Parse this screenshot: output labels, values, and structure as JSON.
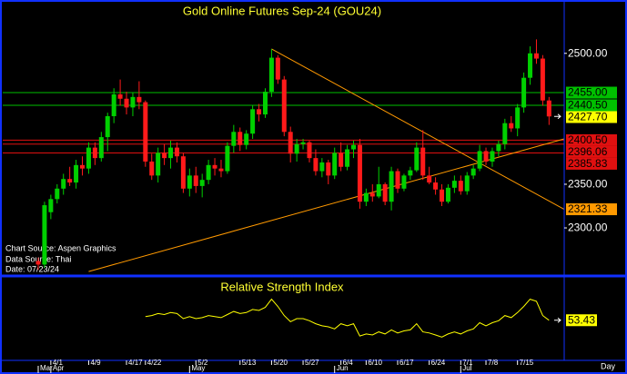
{
  "chart_data": {
    "type": "candlestick",
    "title": "Gold Online Futures Sep-24 (GOU24)",
    "sources": [
      "Chart Source: Aspen Graphics",
      "Data Source: Thai",
      "Date: 07/23/24"
    ],
    "x_label": "Day",
    "up_color": "#00d000",
    "down_color": "#ff1a1a",
    "categories": [
      null,
      null,
      "4/1",
      null,
      null,
      null,
      null,
      null,
      "4/9",
      null,
      null,
      null,
      null,
      null,
      "4/17",
      null,
      null,
      "4/22",
      null,
      null,
      null,
      null,
      null,
      null,
      null,
      "5/2",
      null,
      null,
      null,
      null,
      null,
      null,
      "5/13",
      null,
      null,
      null,
      null,
      "5/20",
      null,
      null,
      null,
      null,
      "5/27",
      null,
      null,
      null,
      null,
      null,
      "6/4",
      null,
      null,
      null,
      "6/10",
      null,
      null,
      null,
      null,
      "6/17",
      null,
      null,
      null,
      null,
      "6/24",
      null,
      null,
      null,
      null,
      "7/1",
      null,
      null,
      null,
      "7/8",
      null,
      null,
      null,
      null,
      "7/15",
      null,
      null,
      null,
      null,
      null
    ],
    "months": [
      "Mar",
      null,
      "Apr",
      null,
      null,
      null,
      null,
      null,
      null,
      null,
      null,
      null,
      null,
      null,
      null,
      null,
      null,
      null,
      null,
      null,
      null,
      null,
      null,
      null,
      "May",
      null,
      null,
      null,
      null,
      null,
      null,
      null,
      null,
      null,
      null,
      null,
      null,
      null,
      null,
      null,
      null,
      null,
      null,
      null,
      null,
      null,
      null,
      "Jun",
      null,
      null,
      null,
      null,
      null,
      null,
      null,
      null,
      null,
      null,
      null,
      null,
      null,
      null,
      null,
      null,
      null,
      null,
      null,
      "Jul",
      null,
      null,
      null,
      null,
      null,
      null,
      null,
      null,
      null,
      null,
      null,
      null,
      null,
      null
    ],
    "open": [
      2262,
      2258,
      2318,
      2333,
      2345,
      2356,
      2352,
      2372,
      2368,
      2392,
      2380,
      2404,
      2428,
      2453,
      2448,
      2438,
      2450,
      2444,
      2376,
      2360,
      2386,
      2380,
      2392,
      2382,
      2345,
      2360,
      2348,
      2355,
      2372,
      2368,
      2365,
      2394,
      2410,
      2395,
      2408,
      2436,
      2430,
      2456,
      2495,
      2470,
      2410,
      2385,
      2396,
      2398,
      2380,
      2365,
      2375,
      2360,
      2386,
      2370,
      2390,
      2395,
      2330,
      2340,
      2336,
      2350,
      2330,
      2365,
      2345,
      2360,
      2366,
      2392,
      2360,
      2352,
      2344,
      2330,
      2346,
      2354,
      2342,
      2360,
      2368,
      2388,
      2376,
      2388,
      2396,
      2420,
      2414,
      2438,
      2472,
      2500,
      2494,
      2446
    ],
    "high": [
      2266,
      2330,
      2338,
      2350,
      2362,
      2370,
      2378,
      2382,
      2398,
      2398,
      2410,
      2432,
      2460,
      2470,
      2456,
      2455,
      2468,
      2446,
      2385,
      2392,
      2396,
      2400,
      2398,
      2386,
      2368,
      2370,
      2362,
      2378,
      2380,
      2378,
      2398,
      2418,
      2415,
      2412,
      2440,
      2442,
      2460,
      2505,
      2498,
      2474,
      2416,
      2402,
      2402,
      2400,
      2390,
      2380,
      2378,
      2392,
      2398,
      2395,
      2400,
      2402,
      2345,
      2350,
      2370,
      2352,
      2370,
      2368,
      2362,
      2370,
      2398,
      2412,
      2370,
      2358,
      2350,
      2350,
      2360,
      2360,
      2364,
      2372,
      2395,
      2392,
      2392,
      2400,
      2425,
      2428,
      2442,
      2478,
      2508,
      2516,
      2498,
      2450
    ],
    "low": [
      2252,
      2254,
      2310,
      2328,
      2338,
      2348,
      2345,
      2360,
      2362,
      2372,
      2376,
      2388,
      2420,
      2440,
      2430,
      2428,
      2436,
      2370,
      2355,
      2352,
      2372,
      2368,
      2375,
      2340,
      2336,
      2340,
      2335,
      2350,
      2360,
      2358,
      2362,
      2386,
      2388,
      2390,
      2402,
      2422,
      2426,
      2450,
      2465,
      2405,
      2375,
      2376,
      2390,
      2375,
      2360,
      2358,
      2350,
      2356,
      2365,
      2366,
      2380,
      2322,
      2325,
      2330,
      2334,
      2326,
      2320,
      2340,
      2342,
      2355,
      2364,
      2355,
      2350,
      2338,
      2325,
      2328,
      2340,
      2338,
      2338,
      2356,
      2365,
      2372,
      2370,
      2382,
      2390,
      2410,
      2405,
      2432,
      2464,
      2488,
      2440,
      2418
    ],
    "close": [
      2258,
      2326,
      2333,
      2345,
      2356,
      2352,
      2372,
      2368,
      2392,
      2380,
      2404,
      2428,
      2453,
      2448,
      2438,
      2450,
      2444,
      2376,
      2360,
      2386,
      2380,
      2392,
      2382,
      2345,
      2360,
      2348,
      2355,
      2372,
      2368,
      2365,
      2394,
      2410,
      2395,
      2408,
      2436,
      2430,
      2456,
      2495,
      2470,
      2410,
      2385,
      2396,
      2398,
      2380,
      2365,
      2375,
      2360,
      2386,
      2370,
      2390,
      2395,
      2330,
      2340,
      2336,
      2350,
      2330,
      2365,
      2345,
      2360,
      2366,
      2392,
      2360,
      2352,
      2344,
      2330,
      2346,
      2354,
      2342,
      2360,
      2368,
      2388,
      2376,
      2388,
      2396,
      2420,
      2414,
      2438,
      2472,
      2500,
      2494,
      2446,
      2427.7
    ],
    "ylim": [
      2247,
      2558
    ],
    "yticks": [
      {
        "value": 2500,
        "label": "2500.00"
      },
      {
        "value": 2350,
        "label": "2350.00"
      },
      {
        "value": 2300,
        "label": "2300.00"
      }
    ],
    "levels": [
      {
        "value": 2455,
        "label": "2455.00",
        "color": "#00c000"
      },
      {
        "value": 2440.5,
        "label": "2440.50",
        "color": "#00c000"
      },
      {
        "value": 2400.5,
        "label": "2400.50",
        "color": "#e01010"
      },
      {
        "value": 2396.06,
        "label": "2396.06",
        "color": "#e01010"
      },
      {
        "value": 2385.83,
        "label": "2385.83",
        "color": "#e01010"
      }
    ],
    "last_price": {
      "value": 2427.7,
      "label": "2427.70",
      "color": "#ffff00"
    },
    "trendline_color": "#ff9900",
    "trendlines": [
      {
        "x": [
          37,
          83.4
        ],
        "y": [
          2505,
          2321.33
        ]
      },
      {
        "x": [
          8,
          83.4
        ],
        "y": [
          2250,
          2402
        ]
      }
    ],
    "rsi": {
      "title": "Relative Strength Index",
      "color": "#ffff00",
      "ylim": [
        15,
        95
      ],
      "values": [
        null,
        null,
        null,
        null,
        null,
        null,
        null,
        null,
        null,
        null,
        null,
        null,
        null,
        null,
        null,
        null,
        null,
        57,
        58,
        60,
        59,
        61,
        60,
        55,
        57,
        55,
        56,
        58,
        57,
        56,
        59,
        62,
        60,
        61,
        64,
        63,
        66,
        74,
        67,
        58,
        52,
        55,
        55,
        53,
        50,
        48,
        47,
        45,
        50,
        48,
        50,
        38,
        40,
        39,
        42,
        40,
        44,
        41,
        43,
        44,
        50,
        42,
        41,
        39,
        37,
        40,
        42,
        40,
        43,
        45,
        51,
        48,
        51,
        53,
        58,
        56,
        61,
        67,
        74,
        72,
        58,
        53.43
      ]
    }
  }
}
